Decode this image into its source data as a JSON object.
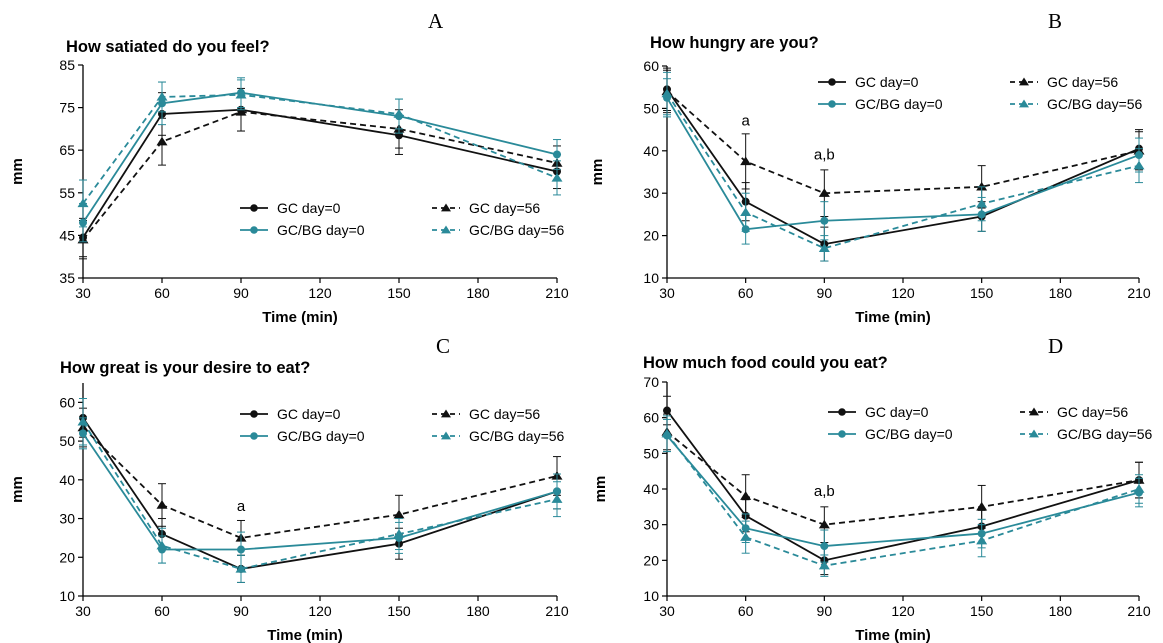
{
  "colors": {
    "gc": "#111111",
    "gcbg": "#2a8a99"
  },
  "chart_data": [
    {
      "type": "line",
      "panel_letter": "A",
      "title": "How satiated do you feel?",
      "xlabel": "Time (min)",
      "ylabel": "mm",
      "x": [
        30,
        60,
        90,
        150,
        210
      ],
      "xticks": [
        30,
        60,
        90,
        120,
        150,
        180,
        210
      ],
      "xlim": [
        30,
        210
      ],
      "ylim": [
        35,
        85
      ],
      "yticks": [
        35,
        45,
        55,
        65,
        75,
        85
      ],
      "legend_position": "center-right",
      "series": [
        {
          "name": "GC day=0",
          "style": "solid",
          "marker": "circle",
          "color": "#111111",
          "values": [
            44.5,
            73.5,
            74.5,
            68.5,
            60.0
          ],
          "errors": [
            4.5,
            5.0,
            5.0,
            4.5,
            4.0
          ]
        },
        {
          "name": "GC day=56",
          "style": "dashed",
          "marker": "triangle",
          "color": "#111111",
          "values": [
            44.0,
            67.0,
            74.0,
            70.0,
            62.0
          ],
          "errors": [
            4.5,
            5.5,
            4.5,
            4.5,
            4.0
          ]
        },
        {
          "name": "GC/BG day=0",
          "style": "solid",
          "marker": "circle",
          "color": "#2a8a99",
          "values": [
            48.0,
            76.0,
            78.5,
            73.0,
            64.0
          ],
          "errors": [
            4.5,
            5.0,
            3.5,
            4.0,
            3.5
          ]
        },
        {
          "name": "GC/BG day=56",
          "style": "dashed",
          "marker": "triangle",
          "color": "#2a8a99",
          "values": [
            52.5,
            77.5,
            78.0,
            73.5,
            58.5
          ],
          "errors": [
            5.5,
            3.5,
            3.5,
            3.5,
            4.0
          ]
        }
      ],
      "annotations": []
    },
    {
      "type": "line",
      "panel_letter": "B",
      "title": "How hungry are you?",
      "xlabel": "Time (min)",
      "ylabel": "mm",
      "x": [
        30,
        60,
        90,
        150,
        210
      ],
      "xticks": [
        30,
        60,
        90,
        120,
        150,
        180,
        210
      ],
      "xlim": [
        30,
        210
      ],
      "ylim": [
        10,
        60
      ],
      "yticks": [
        10,
        20,
        30,
        40,
        50,
        60
      ],
      "legend_position": "top-right",
      "series": [
        {
          "name": "GC day=0",
          "style": "solid",
          "marker": "circle",
          "color": "#111111",
          "values": [
            54.5,
            28.0,
            18.0,
            24.5,
            40.5
          ],
          "errors": [
            5.0,
            4.5,
            4.0,
            3.5,
            4.5
          ]
        },
        {
          "name": "GC day=56",
          "style": "dashed",
          "marker": "triangle",
          "color": "#111111",
          "values": [
            54.0,
            37.5,
            30.0,
            31.5,
            40.0
          ],
          "errors": [
            5.0,
            6.5,
            5.5,
            5.0,
            4.5
          ]
        },
        {
          "name": "GC/BG day=0",
          "style": "solid",
          "marker": "circle",
          "color": "#2a8a99",
          "values": [
            52.5,
            21.5,
            23.5,
            25.0,
            39.0
          ],
          "errors": [
            4.5,
            3.5,
            4.5,
            4.0,
            4.0
          ]
        },
        {
          "name": "GC/BG day=56",
          "style": "dashed",
          "marker": "triangle",
          "color": "#2a8a99",
          "values": [
            53.5,
            25.5,
            17.0,
            27.5,
            36.5
          ],
          "errors": [
            5.0,
            4.5,
            3.0,
            4.0,
            4.0
          ]
        }
      ],
      "annotations": [
        {
          "x": 60,
          "y": 46,
          "text": "a"
        },
        {
          "x": 90,
          "y": 38,
          "text": "a,b"
        }
      ]
    },
    {
      "type": "line",
      "panel_letter": "C",
      "title": "How great is your desire to eat?",
      "xlabel": "Time (min)",
      "ylabel": "mm",
      "x": [
        30,
        60,
        90,
        150,
        210
      ],
      "xticks": [
        30,
        60,
        90,
        120,
        150,
        180,
        210
      ],
      "xlim": [
        30,
        210
      ],
      "ylim": [
        10,
        65
      ],
      "yticks": [
        10,
        20,
        30,
        40,
        50,
        60
      ],
      "legend_position": "top-right",
      "series": [
        {
          "name": "GC day=0",
          "style": "solid",
          "marker": "circle",
          "color": "#111111",
          "values": [
            56.0,
            26.0,
            17.0,
            23.5,
            37.0
          ],
          "errors": [
            5.0,
            4.0,
            3.5,
            4.0,
            4.5
          ]
        },
        {
          "name": "GC day=56",
          "style": "dashed",
          "marker": "triangle",
          "color": "#111111",
          "values": [
            53.5,
            33.5,
            25.0,
            31.0,
            41.0
          ],
          "errors": [
            5.0,
            5.5,
            4.5,
            5.0,
            5.0
          ]
        },
        {
          "name": "GC/BG day=0",
          "style": "solid",
          "marker": "circle",
          "color": "#2a8a99",
          "values": [
            52.0,
            22.0,
            22.0,
            25.0,
            37.0
          ],
          "errors": [
            4.0,
            3.5,
            4.5,
            4.0,
            4.5
          ]
        },
        {
          "name": "GC/BG day=56",
          "style": "dashed",
          "marker": "triangle",
          "color": "#2a8a99",
          "values": [
            55.0,
            23.0,
            17.0,
            26.0,
            35.0
          ],
          "errors": [
            6.0,
            4.5,
            3.5,
            4.0,
            4.5
          ]
        }
      ],
      "annotations": [
        {
          "x": 90,
          "y": 32,
          "text": "a"
        }
      ]
    },
    {
      "type": "line",
      "panel_letter": "D",
      "title": "How much food could you eat?",
      "xlabel": "Time (min)",
      "ylabel": "mm",
      "x": [
        30,
        60,
        90,
        150,
        210
      ],
      "xticks": [
        30,
        60,
        90,
        120,
        150,
        180,
        210
      ],
      "xlim": [
        30,
        210
      ],
      "ylim": [
        10,
        70
      ],
      "yticks": [
        10,
        20,
        30,
        40,
        50,
        60,
        70
      ],
      "legend_position": "top-right",
      "series": [
        {
          "name": "GC day=0",
          "style": "solid",
          "marker": "circle",
          "color": "#111111",
          "values": [
            62.0,
            32.5,
            20.0,
            29.5,
            42.5
          ],
          "errors": [
            4.0,
            4.5,
            4.0,
            4.5,
            5.0
          ]
        },
        {
          "name": "GC day=56",
          "style": "dashed",
          "marker": "triangle",
          "color": "#111111",
          "values": [
            56.0,
            38.0,
            30.0,
            35.0,
            42.5
          ],
          "errors": [
            5.0,
            6.0,
            5.0,
            6.0,
            5.0
          ]
        },
        {
          "name": "GC/BG day=0",
          "style": "solid",
          "marker": "circle",
          "color": "#2a8a99",
          "values": [
            55.0,
            29.0,
            24.0,
            27.5,
            39.0
          ],
          "errors": [
            4.5,
            4.0,
            4.5,
            4.0,
            4.0
          ]
        },
        {
          "name": "GC/BG day=56",
          "style": "dashed",
          "marker": "triangle",
          "color": "#2a8a99",
          "values": [
            55.5,
            26.5,
            18.5,
            25.5,
            40.0
          ],
          "errors": [
            5.0,
            4.5,
            3.0,
            4.5,
            4.0
          ]
        }
      ],
      "annotations": [
        {
          "x": 90,
          "y": 38,
          "text": "a,b"
        }
      ]
    }
  ]
}
